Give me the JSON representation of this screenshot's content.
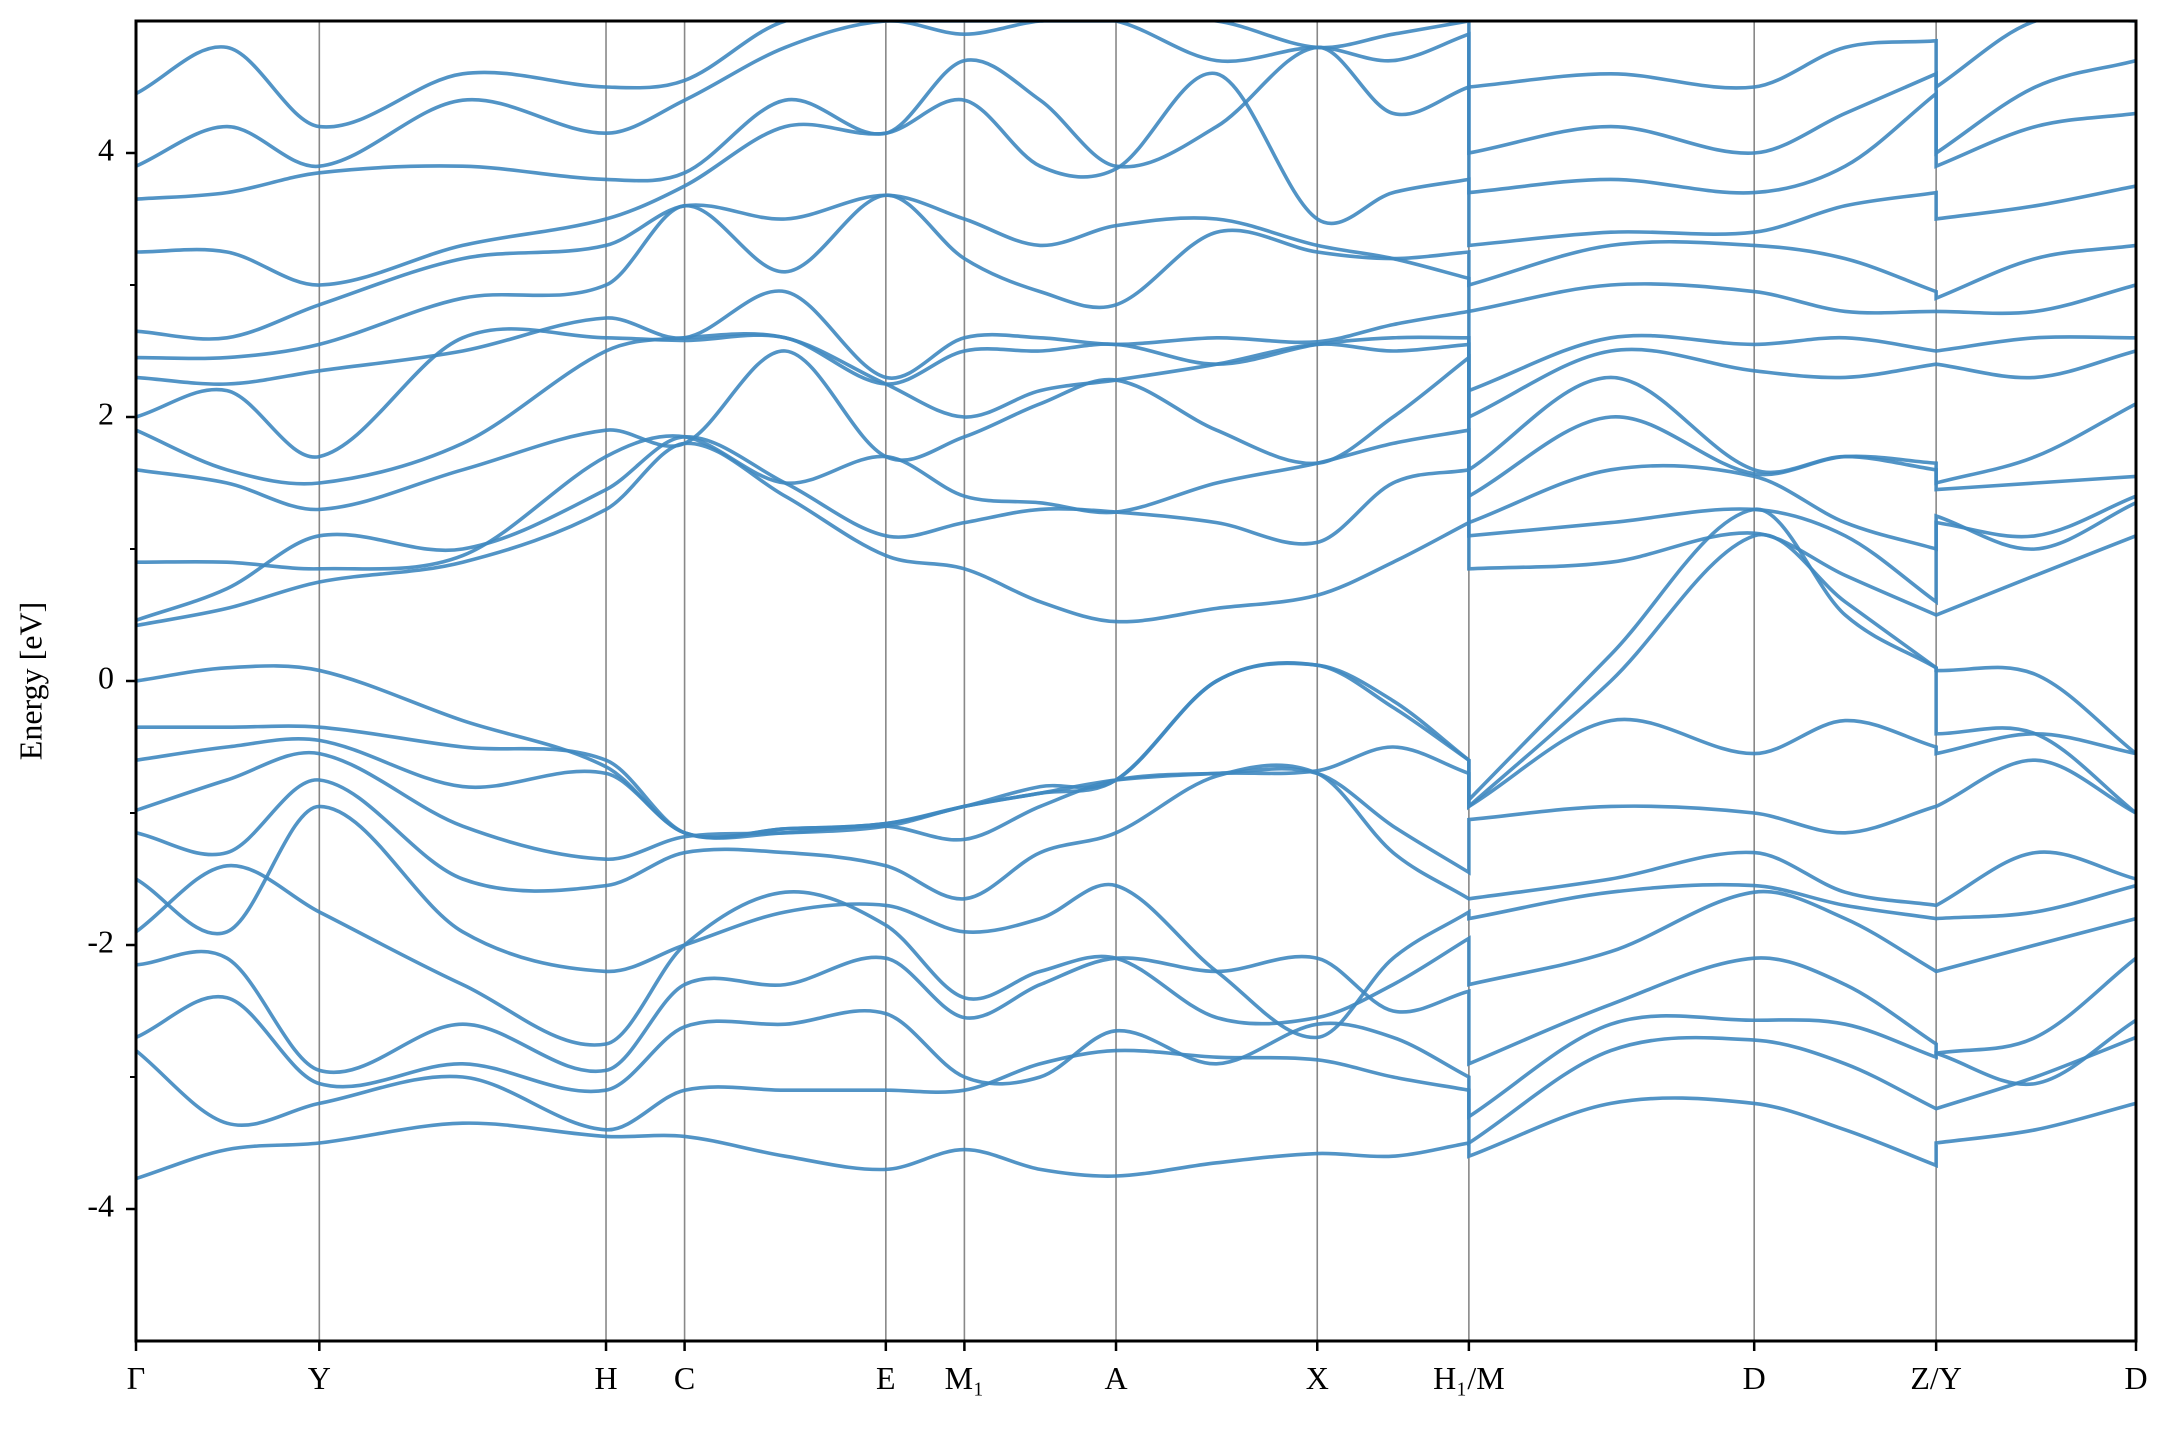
{
  "chart_data": {
    "type": "line",
    "y_label": "Energy [eV]",
    "ylim": [
      -5,
      5
    ],
    "yticks": [
      -4,
      -2,
      0,
      2,
      4
    ],
    "yminor_ticks": [
      -3,
      -1,
      1,
      3
    ],
    "xlim": [
      0,
      14.51
    ],
    "xticks": [
      {
        "value": 0,
        "label": "Γ"
      },
      {
        "value": 1.33,
        "label": "Y"
      },
      {
        "value": 3.41,
        "label": "H"
      },
      {
        "value": 3.98,
        "label": "C"
      },
      {
        "value": 5.44,
        "label": "E"
      },
      {
        "value": 6.01,
        "label": "M₁"
      },
      {
        "value": 7.11,
        "label": "A"
      },
      {
        "value": 8.57,
        "label": "X"
      },
      {
        "value": 9.67,
        "label": "H₁/M"
      },
      {
        "value": 11.74,
        "label": "D"
      },
      {
        "value": 13.06,
        "label": "Z/Y"
      },
      {
        "value": 14.51,
        "label": "D"
      }
    ],
    "vertical_lines": true,
    "x": [
      0,
      0.66,
      1.33,
      2.37,
      3.41,
      3.98,
      4.71,
      5.44,
      6.01,
      6.56,
      7.11,
      7.84,
      8.57,
      9.12,
      9.67,
      9.67,
      10.7,
      11.74,
      12.4,
      13.06,
      13.06,
      13.78,
      14.51
    ],
    "series": [
      {
        "color": "#3f88c0",
        "values": [
          -3.77,
          -3.55,
          -3.5,
          -3.35,
          -3.45,
          -3.45,
          -3.6,
          -3.7,
          -3.55,
          -3.7,
          -3.75,
          -3.65,
          -3.58,
          -3.6,
          -3.5,
          -3.6,
          -3.2,
          -3.2,
          -3.4,
          -3.67,
          -3.5,
          -3.4,
          -3.2
        ]
      },
      {
        "color": "#3f88c0",
        "values": [
          -2.8,
          -3.35,
          -3.2,
          -3.0,
          -3.4,
          -3.1,
          -3.1,
          -3.1,
          -3.1,
          -2.9,
          -2.8,
          -2.85,
          -2.87,
          -3.0,
          -3.1,
          -3.5,
          -2.8,
          -2.72,
          -2.9,
          -3.24,
          -3.24,
          -3.0,
          -2.7
        ]
      },
      {
        "color": "#3f88c0",
        "values": [
          -2.7,
          -2.4,
          -3.05,
          -2.9,
          -3.1,
          -2.62,
          -2.6,
          -2.52,
          -3.0,
          -3.0,
          -2.65,
          -2.9,
          -2.6,
          -2.7,
          -3.0,
          -3.3,
          -2.6,
          -2.57,
          -2.6,
          -2.85,
          -2.82,
          -3.05,
          -2.57
        ]
      },
      {
        "color": "#3f88c0",
        "values": [
          -2.15,
          -2.1,
          -2.95,
          -2.6,
          -2.95,
          -2.3,
          -2.3,
          -2.1,
          -2.55,
          -2.3,
          -2.1,
          -2.2,
          -2.1,
          -2.5,
          -2.35,
          -2.9,
          -2.45,
          -2.1,
          -2.3,
          -2.75,
          -2.82,
          -2.7,
          -2.1
        ]
      },
      {
        "color": "#3f88c0",
        "values": [
          -1.9,
          -1.4,
          -1.75,
          -2.3,
          -2.75,
          -2.0,
          -1.6,
          -1.85,
          -2.4,
          -2.2,
          -2.1,
          -2.55,
          -2.55,
          -2.3,
          -1.95,
          -2.3,
          -2.05,
          -1.6,
          -1.8,
          -2.2,
          -2.2,
          -2.0,
          -1.8
        ]
      },
      {
        "color": "#3f88c0",
        "values": [
          -1.5,
          -1.9,
          -0.95,
          -1.9,
          -2.2,
          -2.0,
          -1.75,
          -1.7,
          -1.9,
          -1.8,
          -1.55,
          -2.2,
          -2.7,
          -2.1,
          -1.75,
          -1.8,
          -1.6,
          -1.55,
          -1.7,
          -1.8,
          -1.8,
          -1.75,
          -1.55
        ]
      },
      {
        "color": "#3f88c0",
        "values": [
          -1.15,
          -1.3,
          -0.75,
          -1.5,
          -1.55,
          -1.3,
          -1.3,
          -1.4,
          -1.65,
          -1.3,
          -1.15,
          -0.72,
          -0.7,
          -1.3,
          -1.65,
          -1.65,
          -1.5,
          -1.3,
          -1.6,
          -1.7,
          -1.7,
          -1.3,
          -1.5
        ]
      },
      {
        "color": "#3f88c0",
        "values": [
          -0.98,
          -0.75,
          -0.55,
          -1.1,
          -1.35,
          -1.18,
          -1.15,
          -1.1,
          -1.2,
          -0.95,
          -0.75,
          -0.7,
          -0.7,
          -1.1,
          -1.45,
          -1.05,
          -0.95,
          -1.0,
          -1.15,
          -0.95,
          -0.95,
          -0.6,
          -1.0
        ]
      },
      {
        "color": "#3f88c0",
        "values": [
          -0.6,
          -0.5,
          -0.45,
          -0.8,
          -0.7,
          -1.15,
          -1.15,
          -1.1,
          -0.95,
          -0.85,
          -0.75,
          -0.7,
          -0.68,
          -0.5,
          -0.7,
          -0.95,
          -0.3,
          -0.55,
          -0.3,
          -0.5,
          -0.55,
          -0.4,
          -0.55
        ]
      },
      {
        "color": "#3f88c0",
        "values": [
          -0.35,
          -0.35,
          -0.35,
          -0.5,
          -0.6,
          -1.15,
          -1.12,
          -1.08,
          -0.95,
          -0.85,
          -0.75,
          0.0,
          0.12,
          -0.2,
          -0.6,
          -0.95,
          0.0,
          1.1,
          0.6,
          0.1,
          -0.4,
          -0.4,
          -1.0
        ]
      },
      {
        "color": "#3f88c0",
        "values": [
          0.0,
          0.1,
          0.08,
          -0.3,
          -0.65,
          -1.15,
          -1.12,
          -1.08,
          -0.95,
          -0.8,
          -0.75,
          0.0,
          0.12,
          -0.15,
          -0.6,
          -0.9,
          0.2,
          1.3,
          0.5,
          0.1,
          0.08,
          0.05,
          -0.55
        ]
      },
      {
        "color": "#3f88c0",
        "values": [
          0.42,
          0.55,
          0.75,
          0.9,
          1.3,
          1.8,
          1.4,
          0.95,
          0.85,
          0.6,
          0.45,
          0.55,
          0.65,
          0.9,
          1.2,
          0.85,
          0.9,
          1.12,
          0.8,
          0.5,
          0.5,
          0.8,
          1.1
        ]
      },
      {
        "color": "#3f88c0",
        "values": [
          0.46,
          0.7,
          1.1,
          1.0,
          1.45,
          1.85,
          1.5,
          1.1,
          1.2,
          1.3,
          1.28,
          1.2,
          1.05,
          1.5,
          1.6,
          1.1,
          1.2,
          1.3,
          1.1,
          0.6,
          1.25,
          1.0,
          1.35
        ]
      },
      {
        "color": "#3f88c0",
        "values": [
          0.9,
          0.9,
          0.85,
          0.95,
          1.7,
          1.85,
          1.5,
          1.7,
          1.4,
          1.35,
          1.28,
          1.5,
          1.65,
          1.8,
          1.9,
          1.2,
          1.6,
          1.55,
          1.2,
          1.0,
          1.2,
          1.1,
          1.4
        ]
      },
      {
        "color": "#3f88c0",
        "values": [
          1.6,
          1.5,
          1.3,
          1.6,
          1.9,
          1.8,
          2.5,
          1.7,
          1.85,
          2.1,
          2.28,
          1.9,
          1.65,
          2.0,
          2.45,
          1.4,
          2.0,
          1.57,
          1.7,
          1.65,
          1.45,
          1.5,
          1.55
        ]
      },
      {
        "color": "#3f88c0",
        "values": [
          1.9,
          1.6,
          1.5,
          1.8,
          2.5,
          2.6,
          2.6,
          2.25,
          2.0,
          2.2,
          2.28,
          2.4,
          2.55,
          2.5,
          2.55,
          1.6,
          2.3,
          1.6,
          1.7,
          1.6,
          1.5,
          1.7,
          2.1
        ]
      },
      {
        "color": "#3f88c0",
        "values": [
          2.0,
          2.2,
          1.7,
          2.6,
          2.6,
          2.58,
          2.6,
          2.25,
          2.5,
          2.5,
          2.55,
          2.4,
          2.55,
          2.6,
          2.6,
          2.0,
          2.5,
          2.35,
          2.3,
          2.4,
          2.4,
          2.3,
          2.5
        ]
      },
      {
        "color": "#3f88c0",
        "values": [
          2.3,
          2.25,
          2.35,
          2.5,
          2.75,
          2.6,
          2.95,
          2.3,
          2.6,
          2.6,
          2.55,
          2.6,
          2.57,
          2.7,
          2.8,
          2.2,
          2.6,
          2.55,
          2.6,
          2.5,
          2.5,
          2.6,
          2.6
        ]
      },
      {
        "color": "#3f88c0",
        "values": [
          2.45,
          2.45,
          2.55,
          2.9,
          3.0,
          3.6,
          3.1,
          3.68,
          3.2,
          2.95,
          2.85,
          3.4,
          3.25,
          3.2,
          3.25,
          2.8,
          3.0,
          2.95,
          2.8,
          2.8,
          2.8,
          2.8,
          3.0
        ]
      },
      {
        "color": "#3f88c0",
        "values": [
          2.65,
          2.6,
          2.85,
          3.2,
          3.3,
          3.6,
          3.5,
          3.68,
          3.5,
          3.3,
          3.45,
          3.5,
          3.3,
          3.2,
          3.05,
          3.0,
          3.3,
          3.3,
          3.2,
          2.95,
          2.9,
          3.2,
          3.3
        ]
      },
      {
        "color": "#3f88c0",
        "values": [
          3.25,
          3.25,
          3.0,
          3.3,
          3.5,
          3.75,
          4.2,
          4.15,
          4.4,
          3.9,
          3.88,
          4.6,
          3.5,
          3.7,
          3.8,
          3.3,
          3.4,
          3.4,
          3.6,
          3.7,
          3.5,
          3.6,
          3.75
        ]
      },
      {
        "color": "#3f88c0",
        "values": [
          3.65,
          3.7,
          3.85,
          3.9,
          3.8,
          3.85,
          4.4,
          4.15,
          4.7,
          4.4,
          3.9,
          4.2,
          4.8,
          4.3,
          4.5,
          3.7,
          3.8,
          3.7,
          3.9,
          4.45,
          3.9,
          4.2,
          4.3
        ]
      },
      {
        "color": "#3f88c0",
        "values": [
          3.9,
          4.2,
          3.9,
          4.4,
          4.15,
          4.4,
          4.8,
          5.0,
          4.9,
          5.0,
          5.0,
          4.7,
          4.8,
          4.7,
          4.9,
          4.0,
          4.2,
          4.0,
          4.3,
          4.6,
          4.0,
          4.5,
          4.7
        ]
      },
      {
        "color": "#3f88c0",
        "values": [
          4.45,
          4.8,
          4.2,
          4.6,
          4.5,
          4.55,
          5.0,
          5.0,
          5.0,
          5.0,
          5.0,
          5.0,
          4.8,
          4.9,
          5.0,
          4.5,
          4.6,
          4.5,
          4.8,
          4.85,
          4.5,
          5.0,
          5.0
        ]
      }
    ]
  }
}
